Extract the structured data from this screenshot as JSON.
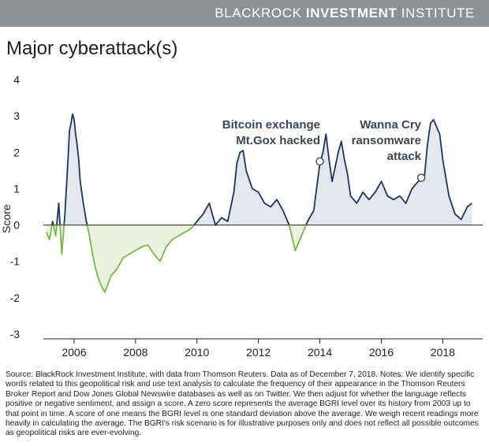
{
  "header": {
    "brand_part1": "BLACKROCK",
    "brand_part2": "INVESTMENT",
    "brand_part3": "INSTITUTE",
    "banner_color": "#8c9193"
  },
  "title": "Major cyberattack(s)",
  "chart_data": {
    "type": "area",
    "title": "Major cyberattack(s)",
    "xlabel": "",
    "ylabel": "Score",
    "xlim": [
      2005.0,
      2019.3
    ],
    "ylim": [
      -3,
      4
    ],
    "x_ticks": [
      2006,
      2008,
      2010,
      2012,
      2014,
      2016,
      2018
    ],
    "x_tick_labels": [
      "2006",
      "2008",
      "2010",
      "2012",
      "2014",
      "2016",
      "2018"
    ],
    "y_ticks": [
      -3,
      -2,
      -1,
      0,
      1,
      2,
      3,
      4
    ],
    "y_tick_labels": [
      "-3",
      "-2",
      "-1",
      "0",
      "1",
      "2",
      "3",
      "4"
    ],
    "grid": false,
    "colors": {
      "positive": "#1d3461",
      "positive_fill": "#e4e8ee",
      "negative": "#7ab648",
      "negative_fill": "#e9f2df"
    },
    "series": [
      {
        "x": [
          2005.1,
          2005.2,
          2005.3,
          2005.4,
          2005.5,
          2005.6,
          2005.7,
          2005.8,
          2005.85,
          2005.9,
          2005.95,
          2006.0,
          2006.05,
          2006.1,
          2006.15,
          2006.2,
          2006.3,
          2006.4,
          2006.5,
          2006.6,
          2006.7,
          2006.8,
          2006.9,
          2007.0,
          2007.2,
          2007.4,
          2007.6,
          2007.8,
          2008.0,
          2008.2,
          2008.4,
          2008.6,
          2008.8,
          2009.0,
          2009.2,
          2009.4,
          2009.6,
          2009.8,
          2010.0,
          2010.2,
          2010.4,
          2010.6,
          2010.8,
          2011.0,
          2011.2,
          2011.3,
          2011.4,
          2011.5,
          2011.6,
          2011.8,
          2012.0,
          2012.2,
          2012.4,
          2012.6,
          2012.8,
          2013.0,
          2013.2,
          2013.4,
          2013.6,
          2013.8,
          2014.0,
          2014.1,
          2014.2,
          2014.3,
          2014.4,
          2014.6,
          2014.7,
          2014.8,
          2014.9,
          2015.0,
          2015.2,
          2015.4,
          2015.6,
          2015.8,
          2016.0,
          2016.2,
          2016.4,
          2016.6,
          2016.8,
          2017.0,
          2017.2,
          2017.4,
          2017.5,
          2017.6,
          2017.7,
          2017.8,
          2017.9,
          2018.0,
          2018.2,
          2018.4,
          2018.6,
          2018.8,
          2018.95
        ],
        "y": [
          -0.2,
          -0.4,
          0.1,
          -0.3,
          0.6,
          -0.8,
          0.3,
          1.8,
          2.6,
          2.8,
          3.05,
          2.9,
          2.5,
          2.2,
          1.8,
          1.2,
          0.6,
          0.1,
          -0.3,
          -0.8,
          -1.2,
          -1.5,
          -1.7,
          -1.85,
          -1.4,
          -1.2,
          -0.9,
          -0.8,
          -0.7,
          -0.6,
          -0.55,
          -0.8,
          -1.0,
          -0.6,
          -0.4,
          -0.3,
          -0.2,
          -0.1,
          0.1,
          0.3,
          0.6,
          0.0,
          0.2,
          0.1,
          0.9,
          1.7,
          2.0,
          2.05,
          1.5,
          1.0,
          0.9,
          0.6,
          0.5,
          0.7,
          0.4,
          0.0,
          -0.7,
          -0.3,
          0.1,
          0.4,
          1.7,
          2.0,
          2.5,
          1.8,
          1.2,
          2.0,
          2.3,
          1.8,
          1.4,
          0.8,
          0.6,
          0.9,
          0.7,
          0.9,
          1.2,
          0.8,
          0.7,
          0.8,
          0.6,
          1.0,
          1.2,
          1.3,
          2.2,
          2.8,
          2.9,
          2.7,
          2.5,
          1.8,
          0.8,
          0.3,
          0.15,
          0.5,
          0.6
        ]
      }
    ],
    "annotations": [
      {
        "text_lines": [
          "Bitcoin exchange",
          "Mt.Gox hacked"
        ],
        "x": 2014.0,
        "y": 1.75
      },
      {
        "text_lines": [
          "Wanna Cry",
          "ransomware",
          "attack"
        ],
        "x": 2017.3,
        "y": 1.3
      }
    ]
  },
  "source_note": "Source: BlackRock Investment Institute, with data from Thomson Reuters. Data as of December 7, 2018. Notes: We identify specific words related to this geopolitical risk and use text analysis to calculate the frequency of their appearance in the Thomson Reuters Broker Report and Dow Jones Global Newswire databases as well as on Twitter. We then adjust for whether the language reflects positive or negative sentiment, and assign a score. A zero score represents the average BGRI level over its history from 2003 up to that point in time. A score of one means the BGRI level is one standard deviation above the average. We weigh recent readings more heavily in calculating the average. The BGRI's risk scenario is for illustrative purposes only and does not reflect all possible outcomes as geopolitical risks are ever-evolving."
}
